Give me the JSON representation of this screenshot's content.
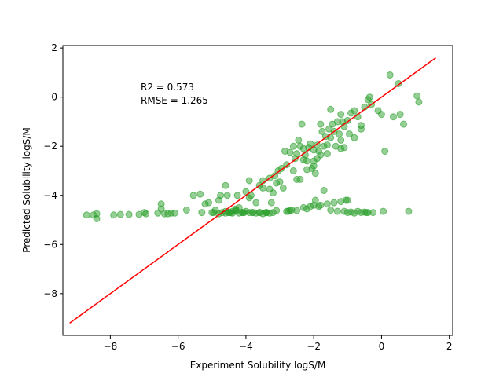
{
  "chart_data": {
    "type": "scatter",
    "xlabel": "Experiment Solubility logS/M",
    "ylabel": "Predicted Solubility logS/M",
    "xlim": [
      -9.4,
      2.1
    ],
    "ylim": [
      -9.7,
      2.1
    ],
    "xticks": [
      -8,
      -6,
      -4,
      -2,
      0,
      2
    ],
    "yticks": [
      -8,
      -6,
      -4,
      -2,
      0,
      2
    ],
    "grid": false,
    "annotations": [
      "R2 = 0.573",
      "RMSE = 1.265"
    ],
    "colors": {
      "points": "#2ca02c",
      "fit_line": "#ff0000"
    },
    "fit_line": {
      "x": [
        -9.2,
        1.6
      ],
      "y": [
        -9.2,
        1.6
      ]
    },
    "points": {
      "x": [
        -8.7,
        -8.5,
        -8.4,
        -8.4,
        -7.9,
        -7.7,
        -7.45,
        -7.15,
        -7.0,
        -6.95,
        -6.6,
        -6.5,
        -6.5,
        -6.4,
        -6.3,
        -6.2,
        -6.1,
        -5.75,
        -5.55,
        -5.35,
        -5.3,
        -5.2,
        -5.1,
        -5.0,
        -4.95,
        -4.9,
        -4.8,
        -4.75,
        -4.7,
        -4.6,
        -4.55,
        -4.5,
        -4.45,
        -4.4,
        -4.3,
        -4.25,
        -4.2,
        -4.1,
        -4.05,
        -4.0,
        -3.9,
        -3.85,
        -3.8,
        -3.7,
        -3.6,
        -3.5,
        -3.4,
        -3.3,
        -3.25,
        -3.2,
        -3.15,
        -3.1,
        -3.05,
        -2.95,
        -2.85,
        -2.8,
        -2.7,
        -2.6,
        -2.55,
        -2.5,
        -2.45,
        -2.4,
        -2.35,
        -2.3,
        -2.25,
        -2.2,
        -2.15,
        -2.1,
        -2.05,
        -2.0,
        -1.95,
        -1.9,
        -1.85,
        -1.8,
        -1.75,
        -1.7,
        -1.65,
        -1.6,
        -1.55,
        -1.5,
        -1.45,
        -1.4,
        -1.35,
        -1.3,
        -1.25,
        -1.2,
        -1.15,
        -1.1,
        -1.0,
        -0.9,
        -0.8,
        -0.7,
        -0.6,
        -0.5,
        -0.4,
        -0.35,
        -0.3,
        -0.1,
        0.0,
        0.1,
        0.25,
        0.35,
        0.5,
        0.55,
        0.65,
        1.05,
        1.1,
        -4.8,
        -4.6,
        -4.5,
        -4.4,
        -4.3,
        -4.2,
        -4.0,
        -3.9,
        -3.7,
        -3.6,
        -3.5,
        -3.4,
        -3.3,
        -3.1,
        -2.8,
        -2.7,
        -2.5,
        -2.3,
        -2.1,
        -2.0,
        -1.8,
        -1.6,
        -1.5,
        -1.4,
        -1.3,
        -1.2,
        -1.1,
        -1.0,
        -0.9,
        -0.8,
        -0.7,
        -0.6,
        -0.5,
        -0.4,
        -3.9,
        -3.5,
        -2.4,
        -2.0,
        -1.7,
        -1.0,
        -3.0,
        -2.5,
        -2.2,
        -1.9,
        -1.6,
        -1.2,
        -0.8,
        -3.3,
        -2.9,
        -2.6,
        -2.3,
        -2.0,
        -1.8,
        -1.5,
        -1.2,
        -1.1,
        -0.95,
        -0.6,
        -4.6,
        -4.3,
        -4.1,
        -3.8,
        -3.6,
        -3.4,
        -3.2,
        -2.75,
        -2.65,
        -2.2,
        -1.95,
        -1.85,
        -1.05,
        -0.45,
        -0.25,
        0.05,
        0.8
      ],
      "y": [
        -4.8,
        -4.8,
        -4.95,
        -4.75,
        -4.8,
        -4.78,
        -4.78,
        -4.78,
        -4.7,
        -4.75,
        -4.72,
        -4.35,
        -4.55,
        -4.75,
        -4.75,
        -4.72,
        -4.72,
        -4.6,
        -4.0,
        -3.95,
        -4.7,
        -4.35,
        -4.3,
        -4.7,
        -4.7,
        -4.6,
        -4.2,
        -4.0,
        -4.7,
        -3.6,
        -4.0,
        -4.7,
        -4.7,
        -4.65,
        -4.55,
        -4.0,
        -4.5,
        -4.7,
        -4.7,
        -3.85,
        -3.4,
        -4.0,
        -4.7,
        -4.3,
        -3.6,
        -3.4,
        -4.7,
        -3.3,
        -4.3,
        -3.9,
        -3.2,
        -3.5,
        -3.0,
        -2.9,
        -2.2,
        -2.75,
        -2.25,
        -2.0,
        -2.5,
        -2.3,
        -1.75,
        -2.0,
        -1.1,
        -2.1,
        -2.35,
        -2.6,
        -2.05,
        -1.9,
        -2.9,
        -2.15,
        -3.1,
        -1.95,
        -2.2,
        -1.1,
        -1.4,
        -2.0,
        -1.6,
        -1.95,
        -1.3,
        -0.5,
        -1.1,
        -1.4,
        -2.0,
        -1.0,
        -1.5,
        -0.7,
        -1.0,
        -1.2,
        -0.95,
        -0.65,
        -0.55,
        -0.8,
        -1.3,
        -0.4,
        -0.1,
        0.0,
        -0.3,
        -0.55,
        -0.7,
        -2.2,
        0.9,
        -0.8,
        0.55,
        -0.7,
        -1.1,
        0.05,
        -0.2,
        -4.75,
        -4.72,
        -4.7,
        -4.72,
        -4.6,
        -4.72,
        -4.65,
        -4.7,
        -4.72,
        -4.7,
        -4.75,
        -4.7,
        -4.72,
        -4.62,
        -4.65,
        -4.6,
        -4.62,
        -4.5,
        -4.45,
        -4.4,
        -4.4,
        -4.35,
        -4.6,
        -4.3,
        -4.65,
        -4.25,
        -4.65,
        -4.7,
        -4.68,
        -4.72,
        -4.65,
        -4.7,
        -4.68,
        -4.7,
        -4.1,
        -3.7,
        -3.35,
        -2.8,
        -3.8,
        -4.2,
        -3.45,
        -3.35,
        -2.95,
        -2.5,
        -2.3,
        -2.1,
        -1.65,
        -3.75,
        -3.7,
        -3.0,
        -2.55,
        -2.6,
        -2.35,
        -1.65,
        -1.75,
        -2.05,
        -1.5,
        -1.15,
        -4.65,
        -4.65,
        -4.7,
        -4.7,
        -4.7,
        -4.7,
        -4.7,
        -4.65,
        -4.6,
        -4.55,
        -4.2,
        -4.45,
        -4.2,
        -4.7,
        -4.7,
        -4.65,
        -4.65
      ]
    }
  }
}
